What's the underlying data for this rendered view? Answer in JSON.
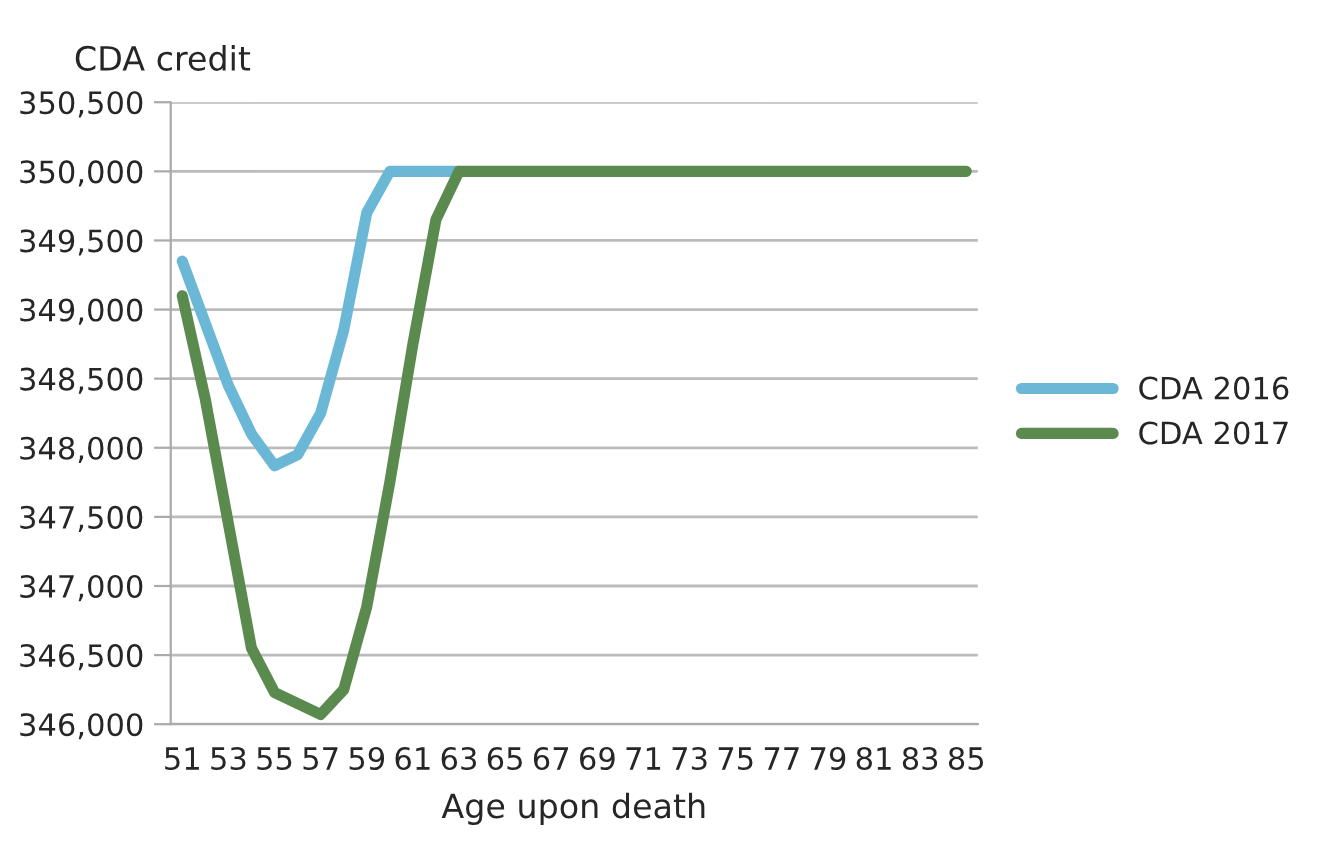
{
  "chart_data": {
    "type": "line",
    "ylabel": "CDA credit",
    "xlabel": "Age upon death",
    "categories": [
      "51",
      null,
      "53",
      null,
      "55",
      null,
      "57",
      null,
      "59",
      null,
      "61",
      null,
      "63",
      null,
      "65",
      null,
      "67",
      null,
      "69",
      null,
      "71",
      null,
      "73",
      null,
      "75",
      null,
      "77",
      null,
      "79",
      null,
      "81",
      null,
      "83",
      null,
      "85"
    ],
    "series": [
      {
        "name": "CDA 2016",
        "color": "#6bb8d6",
        "values": [
          349350,
          348900,
          348450,
          348100,
          347870,
          347950,
          348250,
          348850,
          349700,
          350000,
          350000,
          350000,
          350000,
          null,
          null,
          null,
          null,
          null,
          null,
          null,
          null,
          null,
          null,
          null,
          null,
          null,
          null,
          null,
          null,
          null,
          null,
          null,
          null,
          null,
          null
        ]
      },
      {
        "name": "CDA 2017",
        "color": "#5a8a4e",
        "values": [
          349100,
          348350,
          347450,
          346550,
          346230,
          346150,
          346070,
          346250,
          346850,
          347750,
          348750,
          349650,
          350000,
          350000,
          350000,
          350000,
          350000,
          350000,
          350000,
          350000,
          350000,
          350000,
          350000,
          350000,
          350000,
          350000,
          350000,
          350000,
          350000,
          350000,
          350000,
          350000,
          350000,
          350000,
          350000
        ]
      }
    ],
    "ylim": [
      346000,
      350500
    ],
    "yticks": [
      {
        "value": 346000,
        "label": "346,000"
      },
      {
        "value": 346500,
        "label": "346,500"
      },
      {
        "value": 347000,
        "label": "347,000"
      },
      {
        "value": 347500,
        "label": "347,500"
      },
      {
        "value": 348000,
        "label": "348,000"
      },
      {
        "value": 348500,
        "label": "348,500"
      },
      {
        "value": 349000,
        "label": "349,000"
      },
      {
        "value": 349500,
        "label": "349,500"
      },
      {
        "value": 350000,
        "label": "350,000"
      },
      {
        "value": 350500,
        "label": "350,500"
      }
    ],
    "grid": "y",
    "legend": "right",
    "line_style": "solid",
    "marker": "none"
  }
}
